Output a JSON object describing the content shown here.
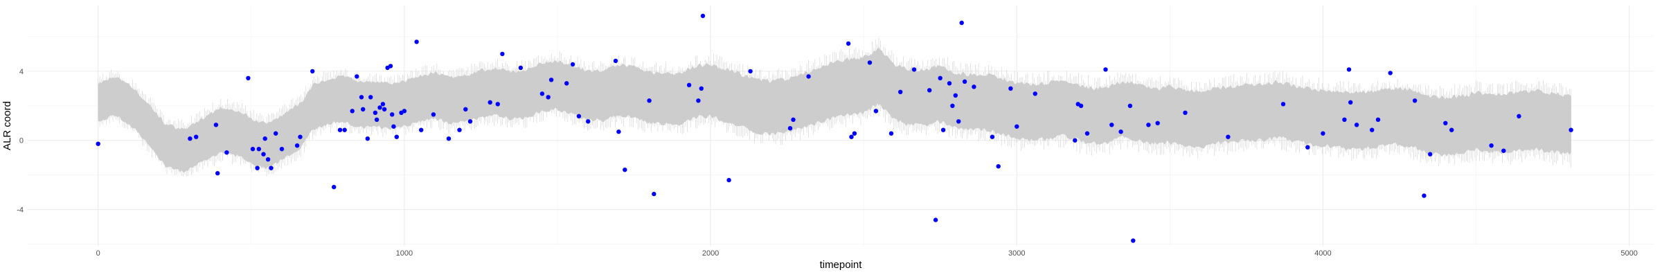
{
  "chart_data": {
    "type": "scatter",
    "title": "",
    "xlabel": "timepoint",
    "ylabel": "ALR coord",
    "xlim": [
      -230,
      5080
    ],
    "ylim": [
      -6.1,
      7.8
    ],
    "x_ticks": [
      0,
      1000,
      2000,
      3000,
      4000,
      5000
    ],
    "y_ticks": [
      -4,
      0,
      4
    ],
    "x_tick_labels": [
      "0",
      "1000",
      "2000",
      "3000",
      "4000",
      "5000"
    ],
    "y_tick_labels": [
      "-4",
      "0",
      "4"
    ],
    "grid": true,
    "legend": "none",
    "colors": {
      "points": "#0000ff",
      "band": "#cdcdcd",
      "grid": "#ebebeb"
    },
    "band": {
      "x_range": [
        0,
        4810
      ],
      "center": [
        [
          0,
          2.2
        ],
        [
          60,
          2.6
        ],
        [
          120,
          1.8
        ],
        [
          180,
          0.6
        ],
        [
          220,
          -0.3
        ],
        [
          280,
          -0.6
        ],
        [
          340,
          0.0
        ],
        [
          400,
          0.6
        ],
        [
          460,
          0.4
        ],
        [
          520,
          -0.2
        ],
        [
          560,
          -0.3
        ],
        [
          620,
          0.4
        ],
        [
          660,
          0.8
        ],
        [
          700,
          1.9
        ],
        [
          760,
          2.3
        ],
        [
          800,
          2.4
        ],
        [
          850,
          2.1
        ],
        [
          900,
          2.1
        ],
        [
          950,
          2.0
        ],
        [
          1000,
          2.1
        ],
        [
          1050,
          2.4
        ],
        [
          1100,
          2.6
        ],
        [
          1150,
          2.3
        ],
        [
          1200,
          2.4
        ],
        [
          1250,
          2.7
        ],
        [
          1300,
          2.8
        ],
        [
          1350,
          2.6
        ],
        [
          1400,
          2.7
        ],
        [
          1450,
          3.1
        ],
        [
          1500,
          3.2
        ],
        [
          1550,
          2.9
        ],
        [
          1600,
          2.6
        ],
        [
          1650,
          2.6
        ],
        [
          1700,
          2.9
        ],
        [
          1750,
          2.8
        ],
        [
          1800,
          2.5
        ],
        [
          1850,
          2.4
        ],
        [
          1900,
          2.4
        ],
        [
          1950,
          2.8
        ],
        [
          2000,
          2.9
        ],
        [
          2050,
          2.6
        ],
        [
          2100,
          2.3
        ],
        [
          2150,
          2.0
        ],
        [
          2200,
          1.9
        ],
        [
          2250,
          2.0
        ],
        [
          2300,
          2.3
        ],
        [
          2350,
          2.6
        ],
        [
          2400,
          2.9
        ],
        [
          2450,
          3.1
        ],
        [
          2500,
          3.2
        ],
        [
          2550,
          3.7
        ],
        [
          2600,
          2.8
        ],
        [
          2650,
          2.5
        ],
        [
          2700,
          2.5
        ],
        [
          2750,
          2.7
        ],
        [
          2800,
          2.3
        ],
        [
          2850,
          2.2
        ],
        [
          2900,
          2.2
        ],
        [
          2950,
          2.0
        ],
        [
          3000,
          1.7
        ],
        [
          3050,
          1.6
        ],
        [
          3100,
          1.7
        ],
        [
          3150,
          1.9
        ],
        [
          3200,
          1.6
        ],
        [
          3250,
          1.4
        ],
        [
          3300,
          1.5
        ],
        [
          3350,
          1.8
        ],
        [
          3400,
          1.6
        ],
        [
          3450,
          1.4
        ],
        [
          3500,
          1.5
        ],
        [
          3550,
          1.3
        ],
        [
          3600,
          1.2
        ],
        [
          3650,
          1.4
        ],
        [
          3700,
          1.5
        ],
        [
          3750,
          1.6
        ],
        [
          3800,
          1.6
        ],
        [
          3850,
          1.8
        ],
        [
          3900,
          1.6
        ],
        [
          3950,
          1.4
        ],
        [
          4000,
          1.3
        ],
        [
          4050,
          1.2
        ],
        [
          4100,
          1.1
        ],
        [
          4150,
          1.2
        ],
        [
          4200,
          1.3
        ],
        [
          4250,
          1.4
        ],
        [
          4300,
          1.2
        ],
        [
          4350,
          0.9
        ],
        [
          4400,
          0.8
        ],
        [
          4450,
          0.9
        ],
        [
          4500,
          1.1
        ],
        [
          4550,
          1.0
        ],
        [
          4600,
          1.0
        ],
        [
          4650,
          1.1
        ],
        [
          4700,
          1.2
        ],
        [
          4750,
          1.0
        ],
        [
          4810,
          0.9
        ]
      ],
      "halfwidth": [
        [
          0,
          1.1
        ],
        [
          400,
          1.3
        ],
        [
          1000,
          1.3
        ],
        [
          2000,
          1.5
        ],
        [
          2500,
          1.6
        ],
        [
          3000,
          1.6
        ],
        [
          4000,
          1.6
        ],
        [
          4810,
          1.7
        ]
      ]
    },
    "points": [
      [
        0,
        -0.2
      ],
      [
        300,
        0.1
      ],
      [
        320,
        0.2
      ],
      [
        385,
        0.9
      ],
      [
        390,
        -1.9
      ],
      [
        420,
        -0.7
      ],
      [
        490,
        3.6
      ],
      [
        505,
        -0.5
      ],
      [
        520,
        -1.6
      ],
      [
        525,
        -0.5
      ],
      [
        540,
        -0.8
      ],
      [
        545,
        0.1
      ],
      [
        555,
        -1.1
      ],
      [
        565,
        -1.6
      ],
      [
        580,
        0.4
      ],
      [
        600,
        -0.5
      ],
      [
        650,
        -0.3
      ],
      [
        660,
        0.2
      ],
      [
        700,
        4.0
      ],
      [
        770,
        -2.7
      ],
      [
        790,
        0.6
      ],
      [
        805,
        0.6
      ],
      [
        830,
        1.7
      ],
      [
        845,
        3.7
      ],
      [
        860,
        2.5
      ],
      [
        865,
        1.8
      ],
      [
        880,
        0.1
      ],
      [
        890,
        2.5
      ],
      [
        905,
        1.6
      ],
      [
        910,
        1.2
      ],
      [
        920,
        1.9
      ],
      [
        930,
        2.1
      ],
      [
        935,
        1.8
      ],
      [
        945,
        4.2
      ],
      [
        955,
        4.3
      ],
      [
        960,
        1.5
      ],
      [
        965,
        0.8
      ],
      [
        975,
        0.2
      ],
      [
        990,
        1.6
      ],
      [
        1000,
        1.7
      ],
      [
        1040,
        5.7
      ],
      [
        1055,
        0.6
      ],
      [
        1095,
        1.5
      ],
      [
        1145,
        0.1
      ],
      [
        1180,
        0.6
      ],
      [
        1200,
        1.8
      ],
      [
        1215,
        1.1
      ],
      [
        1280,
        2.2
      ],
      [
        1305,
        2.1
      ],
      [
        1320,
        5.0
      ],
      [
        1380,
        4.2
      ],
      [
        1450,
        2.7
      ],
      [
        1470,
        2.5
      ],
      [
        1480,
        3.5
      ],
      [
        1530,
        3.3
      ],
      [
        1550,
        4.4
      ],
      [
        1570,
        1.4
      ],
      [
        1600,
        1.1
      ],
      [
        1690,
        4.6
      ],
      [
        1700,
        0.5
      ],
      [
        1720,
        -1.7
      ],
      [
        1800,
        2.3
      ],
      [
        1815,
        -3.1
      ],
      [
        1930,
        3.2
      ],
      [
        1960,
        2.3
      ],
      [
        1970,
        3.0
      ],
      [
        1975,
        7.2
      ],
      [
        2060,
        -2.3
      ],
      [
        2130,
        4.0
      ],
      [
        2260,
        0.7
      ],
      [
        2270,
        1.2
      ],
      [
        2320,
        3.7
      ],
      [
        2450,
        5.6
      ],
      [
        2460,
        0.2
      ],
      [
        2470,
        0.4
      ],
      [
        2520,
        4.5
      ],
      [
        2540,
        1.7
      ],
      [
        2590,
        0.4
      ],
      [
        2620,
        2.8
      ],
      [
        2665,
        4.1
      ],
      [
        2715,
        2.9
      ],
      [
        2735,
        -4.6
      ],
      [
        2750,
        3.6
      ],
      [
        2760,
        0.6
      ],
      [
        2780,
        3.3
      ],
      [
        2790,
        2.0
      ],
      [
        2800,
        2.6
      ],
      [
        2810,
        1.1
      ],
      [
        2820,
        6.8
      ],
      [
        2830,
        3.4
      ],
      [
        2860,
        3.1
      ],
      [
        2920,
        0.2
      ],
      [
        2940,
        -1.5
      ],
      [
        2980,
        3.0
      ],
      [
        3000,
        0.8
      ],
      [
        3060,
        2.7
      ],
      [
        3190,
        0.0
      ],
      [
        3200,
        2.1
      ],
      [
        3210,
        2.0
      ],
      [
        3230,
        0.4
      ],
      [
        3290,
        4.1
      ],
      [
        3310,
        0.9
      ],
      [
        3340,
        0.5
      ],
      [
        3370,
        2.0
      ],
      [
        3380,
        -5.8
      ],
      [
        3430,
        0.9
      ],
      [
        3460,
        1.0
      ],
      [
        3550,
        1.6
      ],
      [
        3690,
        0.2
      ],
      [
        3870,
        2.1
      ],
      [
        3950,
        -0.4
      ],
      [
        4000,
        0.4
      ],
      [
        4070,
        1.2
      ],
      [
        4085,
        4.1
      ],
      [
        4090,
        2.2
      ],
      [
        4110,
        0.9
      ],
      [
        4160,
        0.6
      ],
      [
        4180,
        1.2
      ],
      [
        4220,
        3.9
      ],
      [
        4300,
        2.3
      ],
      [
        4330,
        -3.2
      ],
      [
        4350,
        -0.8
      ],
      [
        4400,
        1.0
      ],
      [
        4420,
        0.6
      ],
      [
        4550,
        -0.3
      ],
      [
        4590,
        -0.6
      ],
      [
        4640,
        1.4
      ],
      [
        4810,
        0.6
      ]
    ]
  }
}
